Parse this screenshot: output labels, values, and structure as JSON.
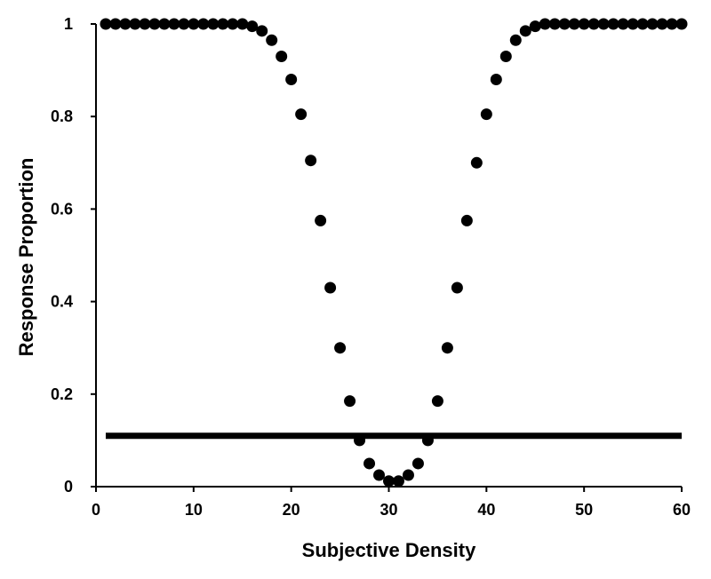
{
  "chart_data": {
    "type": "scatter",
    "title": "",
    "xlabel": "Subjective Density",
    "ylabel": "Response Proportion",
    "xlim": [
      0,
      60
    ],
    "ylim": [
      0,
      1
    ],
    "x_ticks": [
      {
        "value": 0,
        "label": "0"
      },
      {
        "value": 10,
        "label": "10"
      },
      {
        "value": 20,
        "label": "20"
      },
      {
        "value": 30,
        "label": "30"
      },
      {
        "value": 40,
        "label": "40"
      },
      {
        "value": 50,
        "label": "50"
      },
      {
        "value": 60,
        "label": "60"
      }
    ],
    "y_ticks": [
      {
        "value": 0,
        "label": "0"
      },
      {
        "value": 0.2,
        "label": "0.2"
      },
      {
        "value": 0.4,
        "label": "0.4"
      },
      {
        "value": 0.6,
        "label": "0.6"
      },
      {
        "value": 0.8,
        "label": "0.8"
      },
      {
        "value": 1,
        "label": "1"
      }
    ],
    "grid": false,
    "legend": "none",
    "colors": {
      "points": "#000000",
      "line": "#000000",
      "axis": "#000000"
    },
    "series": [
      {
        "type": "scatter",
        "x": [
          1,
          2,
          3,
          4,
          5,
          6,
          7,
          8,
          9,
          10,
          11,
          12,
          13,
          14,
          15,
          16,
          17,
          18,
          19,
          20,
          21,
          22,
          23,
          24,
          25,
          26,
          27,
          28,
          29,
          30,
          31,
          32,
          33,
          34,
          35,
          36,
          37,
          38,
          39,
          40,
          41,
          42,
          43,
          44,
          45,
          46,
          47,
          48,
          49,
          50,
          51,
          52,
          53,
          54,
          55,
          56,
          57,
          58,
          59,
          60
        ],
        "y": [
          1,
          1,
          1,
          1,
          1,
          1,
          1,
          1,
          1,
          1,
          1,
          1,
          1,
          1,
          1,
          0.995,
          0.985,
          0.965,
          0.93,
          0.88,
          0.805,
          0.705,
          0.575,
          0.43,
          0.3,
          0.185,
          0.1,
          0.05,
          0.025,
          0.012,
          0.012,
          0.025,
          0.05,
          0.1,
          0.185,
          0.3,
          0.43,
          0.575,
          0.7,
          0.805,
          0.88,
          0.93,
          0.965,
          0.985,
          0.995,
          1,
          1,
          1,
          1,
          1,
          1,
          1,
          1,
          1,
          1,
          1,
          1,
          1,
          1,
          1
        ]
      },
      {
        "type": "line",
        "x": [
          1,
          60
        ],
        "y": [
          0.11,
          0.11
        ]
      }
    ]
  }
}
